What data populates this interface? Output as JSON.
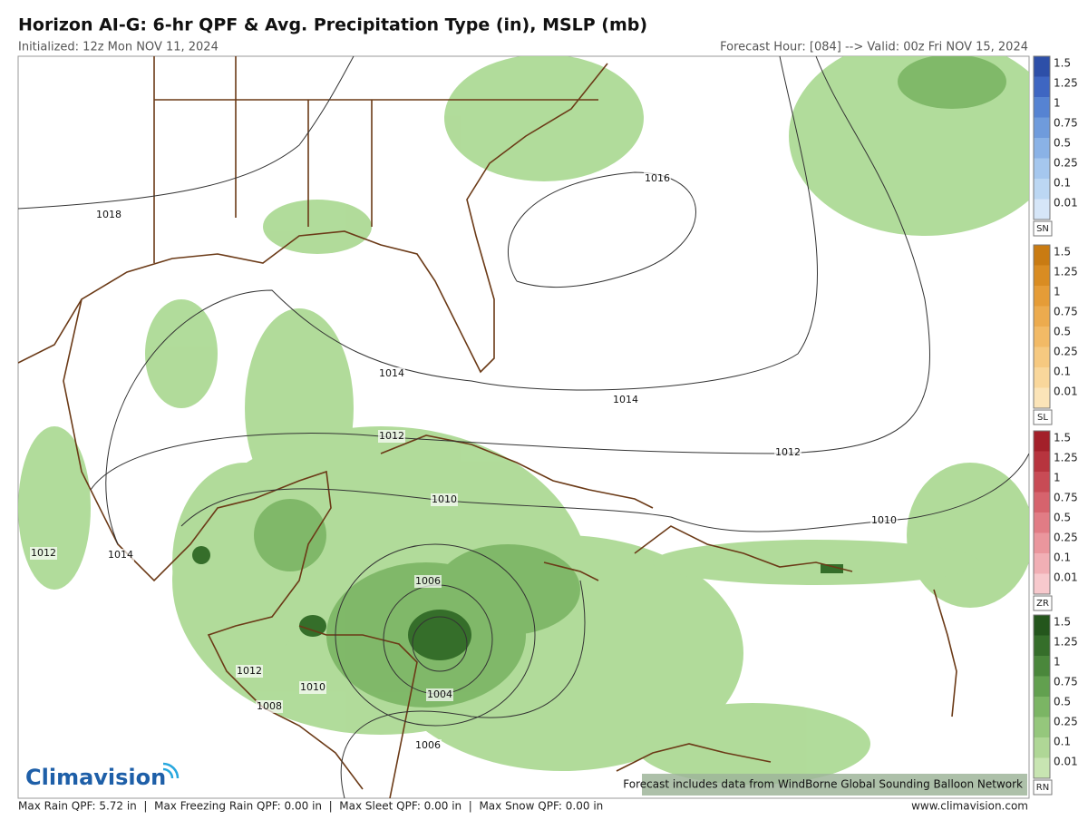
{
  "header": {
    "title": "Horizon AI-G: 6-hr QPF & Avg. Precipitation Type (in), MSLP (mb)",
    "initialized": "Initialized: 12z Mon NOV 11, 2024",
    "valid": "Forecast Hour: [084] --> Valid: 00z Fri NOV 15, 2024"
  },
  "map": {
    "isobar_labels": [
      "1018",
      "1016",
      "1014",
      "1014",
      "1012",
      "1012",
      "1010",
      "1010",
      "1012",
      "1014",
      "1006",
      "1004",
      "1012",
      "1010",
      "1008",
      "1006"
    ],
    "note": "Forecast includes data from WindBorne Global Sounding Balloon Network",
    "logo": "Climavision"
  },
  "legend": {
    "scales": [
      {
        "code": "SN",
        "ticks": [
          1.5,
          1.25,
          1,
          0.75,
          0.5,
          0.25,
          0.1,
          0.01
        ],
        "colors": [
          "#2d4fa8",
          "#3e66c2",
          "#5683d2",
          "#6f9bdc",
          "#8ab2e6",
          "#a5c7ee",
          "#bcd7f3",
          "#d6e6f8"
        ]
      },
      {
        "code": "SL",
        "ticks": [
          1.5,
          1.25,
          1,
          0.75,
          0.5,
          0.25,
          0.1,
          0.01
        ],
        "colors": [
          "#c97b12",
          "#d98c22",
          "#e59c37",
          "#ecab4e",
          "#f2ba66",
          "#f6c980",
          "#f9d79b",
          "#fbe4b8"
        ]
      },
      {
        "code": "ZR",
        "ticks": [
          1.5,
          1.25,
          1,
          0.75,
          0.5,
          0.25,
          0.1,
          0.01
        ],
        "colors": [
          "#a3202a",
          "#b7343e",
          "#c84b55",
          "#d6636d",
          "#e17c85",
          "#ea969d",
          "#f1afb5",
          "#f7c9cd"
        ]
      },
      {
        "code": "RN",
        "ticks": [
          1.5,
          1.25,
          1,
          0.75,
          0.5,
          0.25,
          0.1,
          0.01
        ],
        "colors": [
          "#24561c",
          "#356e2a",
          "#4a873b",
          "#62a04f",
          "#7bb564",
          "#95c77c",
          "#afd796",
          "#c8e5b2"
        ]
      }
    ]
  },
  "footer": {
    "stats": "Max Rain QPF: 5.72 in  |  Max Freezing Rain QPF: 0.00 in  |  Max Sleet QPF: 0.00 in  |  Max Snow QPF: 0.00 in",
    "website": "www.climavision.com"
  }
}
